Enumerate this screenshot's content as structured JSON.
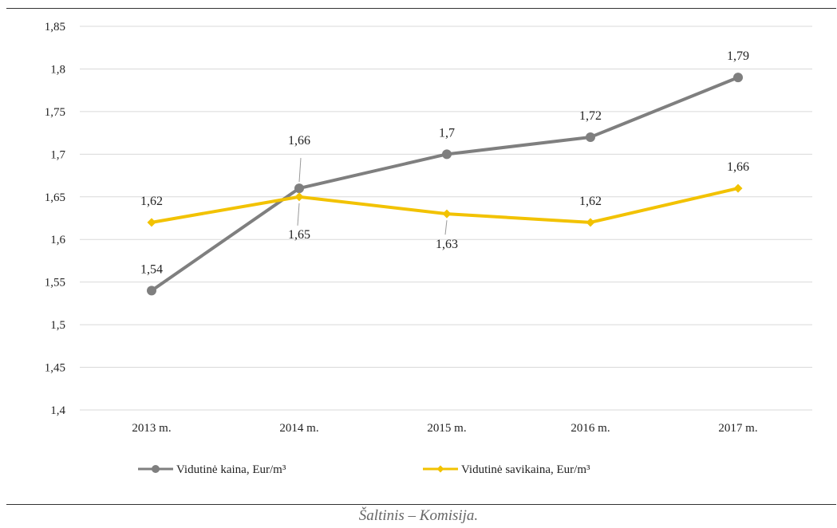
{
  "chart_data": {
    "type": "line",
    "categories": [
      "2013 m.",
      "2014 m.",
      "2015 m.",
      "2016 m.",
      "2017 m."
    ],
    "series": [
      {
        "name": "Vidutinė kaina, Eur/m³",
        "values": [
          1.54,
          1.66,
          1.7,
          1.72,
          1.79
        ],
        "color": "#7f7f7f",
        "marker": "circle"
      },
      {
        "name": "Vidutinė savikaina, Eur/m³",
        "values": [
          1.62,
          1.65,
          1.63,
          1.62,
          1.66
        ],
        "color": "#f2c200",
        "marker": "diamond"
      }
    ],
    "data_labels": [
      [
        "1,54",
        "1,66",
        "1,7",
        "1,72",
        "1,79"
      ],
      [
        "1,62",
        "1,65",
        "1,63",
        "1,62",
        "1,66"
      ]
    ],
    "ylim": [
      1.4,
      1.85
    ],
    "yticks": [
      "1,4",
      "1,45",
      "1,5",
      "1,55",
      "1,6",
      "1,65",
      "1,7",
      "1,75",
      "1,8",
      "1,85"
    ],
    "ytick_values": [
      1.4,
      1.45,
      1.5,
      1.55,
      1.6,
      1.65,
      1.7,
      1.75,
      1.8,
      1.85
    ],
    "grid": true,
    "legend_position": "bottom",
    "gridline_color": "#d9d9d9"
  },
  "source": "Šaltinis – Komisija."
}
